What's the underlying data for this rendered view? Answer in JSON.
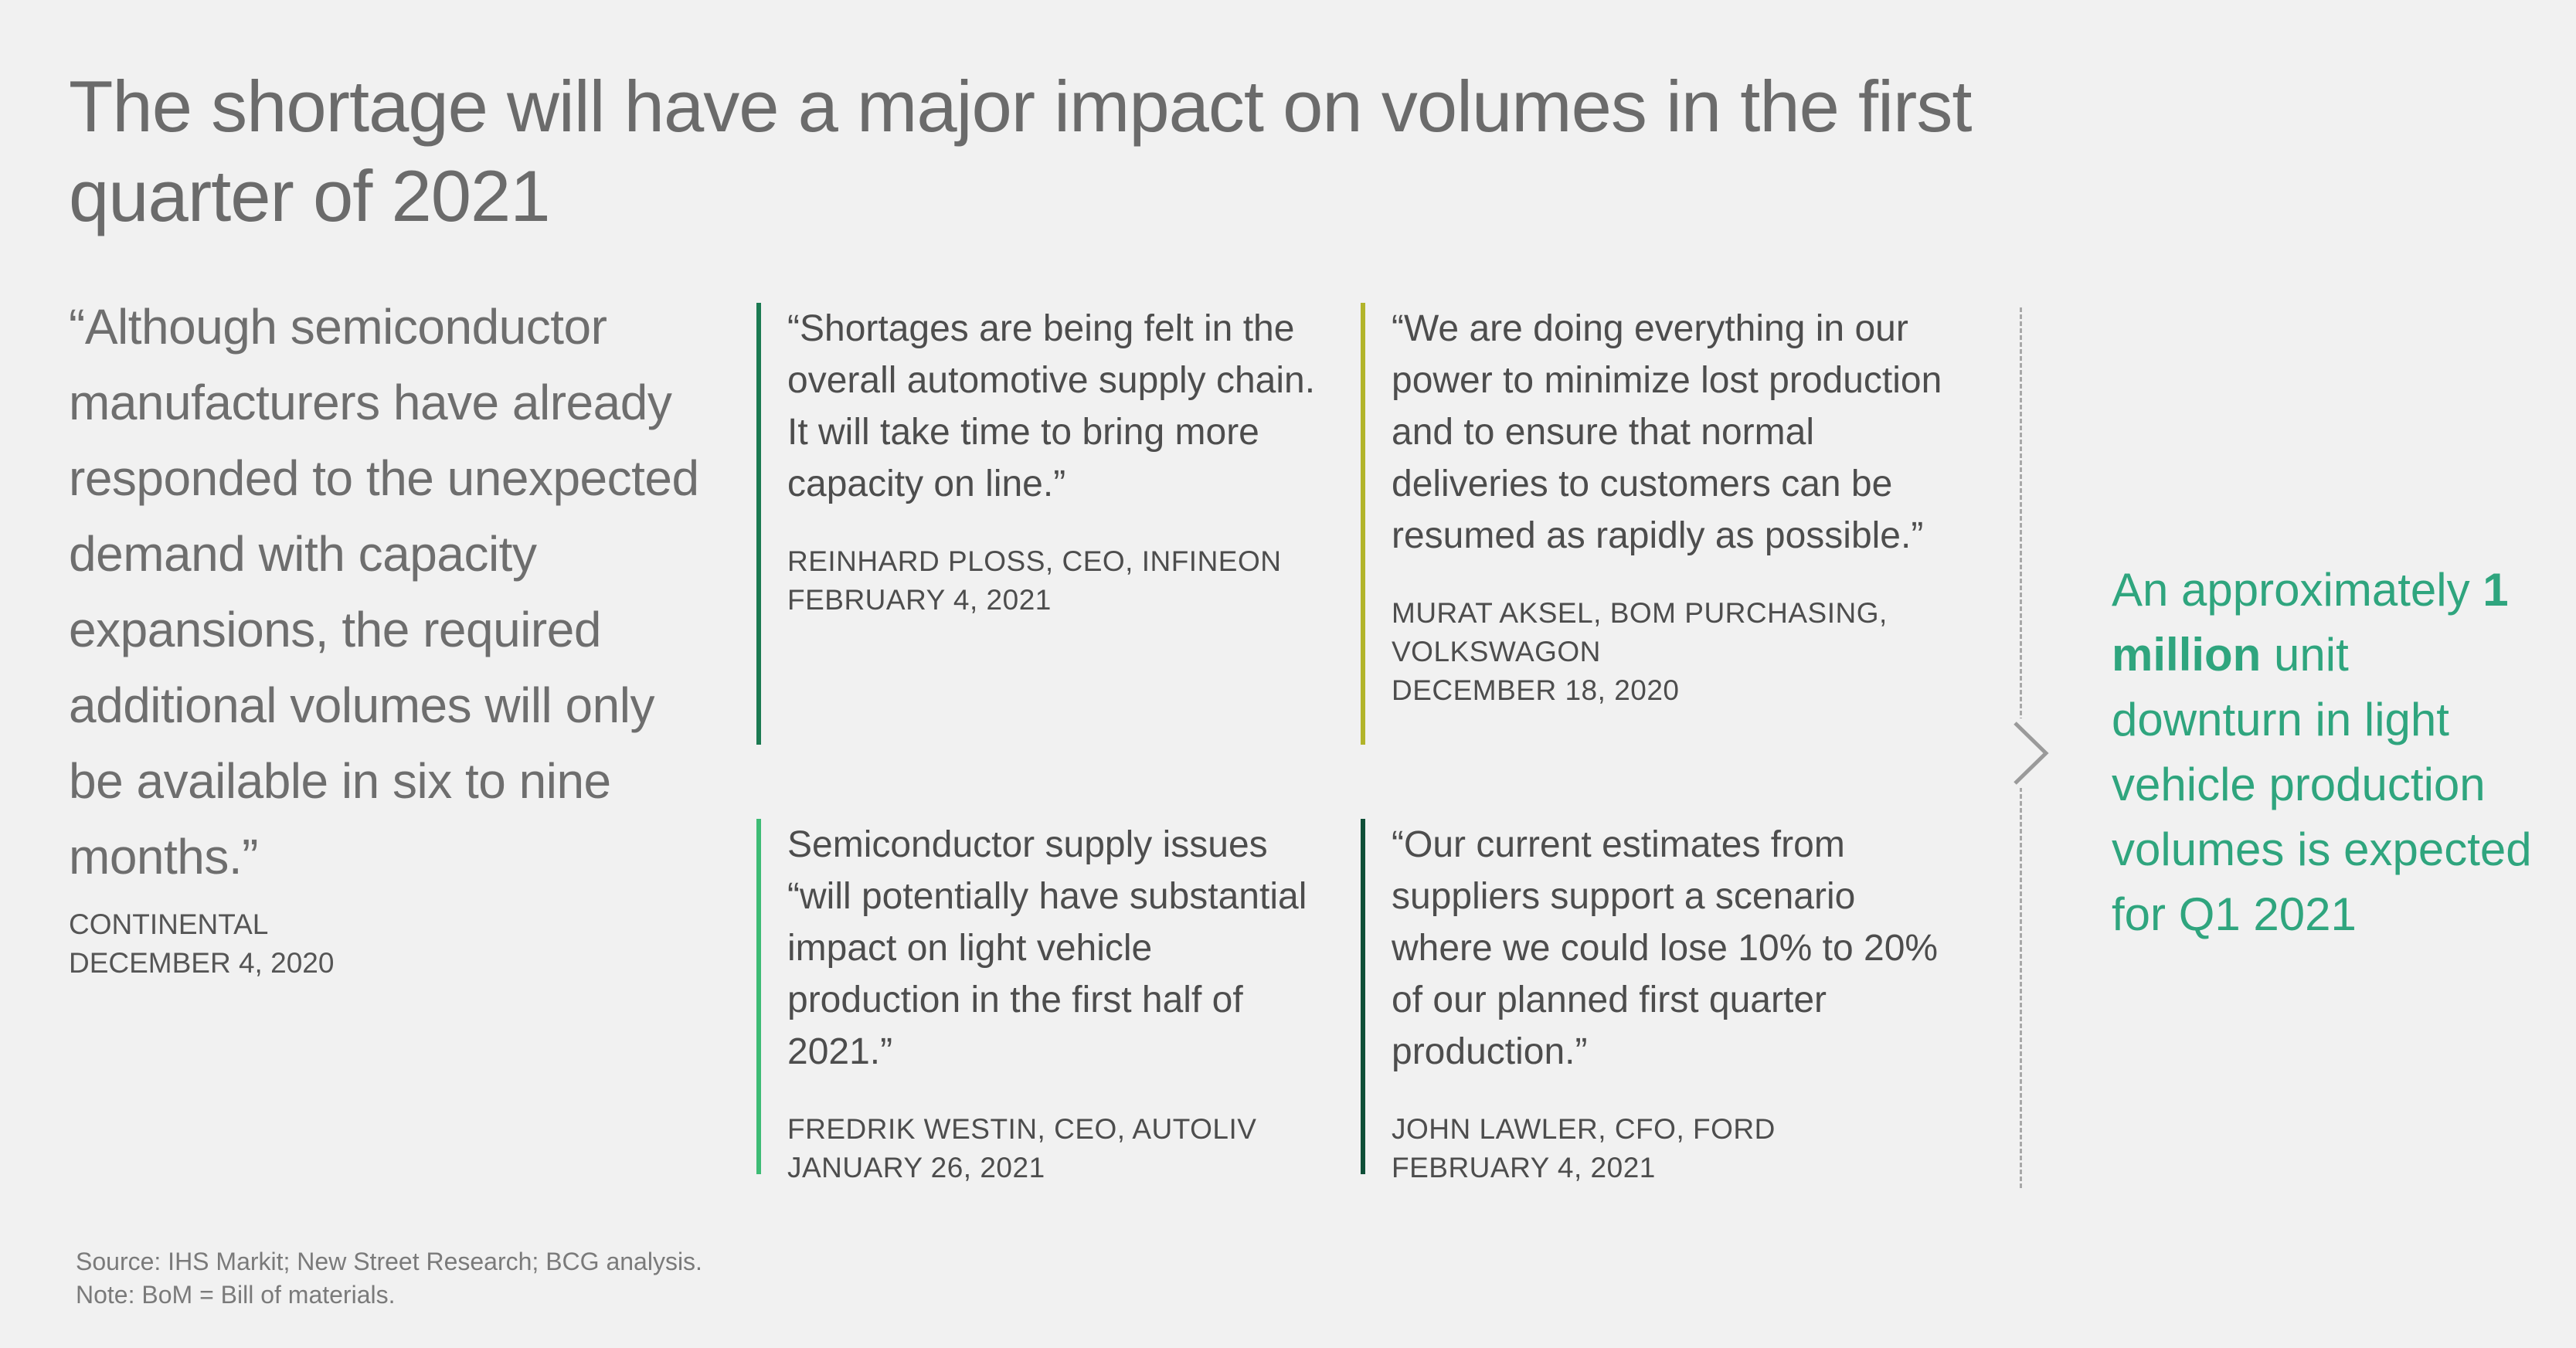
{
  "title": "The shortage will have a major impact on volumes in the first quarter of 2021",
  "lead": {
    "quote": "“Although semiconductor manufacturers have already responded to the unexpected demand with capacity expansions, the required additional volumes will only be available in six to nine months.”",
    "source": "CONTINENTAL",
    "date": "DECEMBER 4, 2020"
  },
  "quotes": [
    {
      "text": "“Shortages are being felt in the overall automotive supply chain. It will take time to bring more capacity on line.”",
      "source": "REINHARD PLOSS, CEO, INFINEON",
      "date": "FEBRUARY 4, 2021",
      "accent": "#1c7a52"
    },
    {
      "text": "“We are doing everything in our power to minimize lost production and to ensure that normal deliveries to customers can be resumed as rapidly as possible.”",
      "source": "MURAT AKSEL, BOM PURCHASING, VOLKSWAGON",
      "date": "DECEMBER 18, 2020",
      "accent": "#b2b42a"
    },
    {
      "text": "Semiconductor supply issues “will potentially have substantial impact on light vehicle production in the first half of 2021.”",
      "source": "FREDRIK WESTIN, CEO, AUTOLIV",
      "date": "JANUARY 26, 2021",
      "accent": "#3ebc75"
    },
    {
      "text": "“Our current estimates from suppliers support a scenario where we could lose 10% to 20% of our planned first quarter production.”",
      "source": "JOHN LAWLER, CFO, FORD",
      "date": "FEBRUARY 4, 2021",
      "accent": "#0f4f38"
    }
  ],
  "takeaway": {
    "prefix": "An approximately",
    "highlight": "1 million",
    "suffix": "unit downturn in light vehicle production volumes is expected for Q1 2021",
    "color": "#2fa57e"
  },
  "footnotes": {
    "source": "Source: IHS Markit; New Street Research; BCG analysis.",
    "note": "Note: BoM = Bill of materials."
  },
  "icons": {
    "chevron": "chevron-right-icon"
  }
}
